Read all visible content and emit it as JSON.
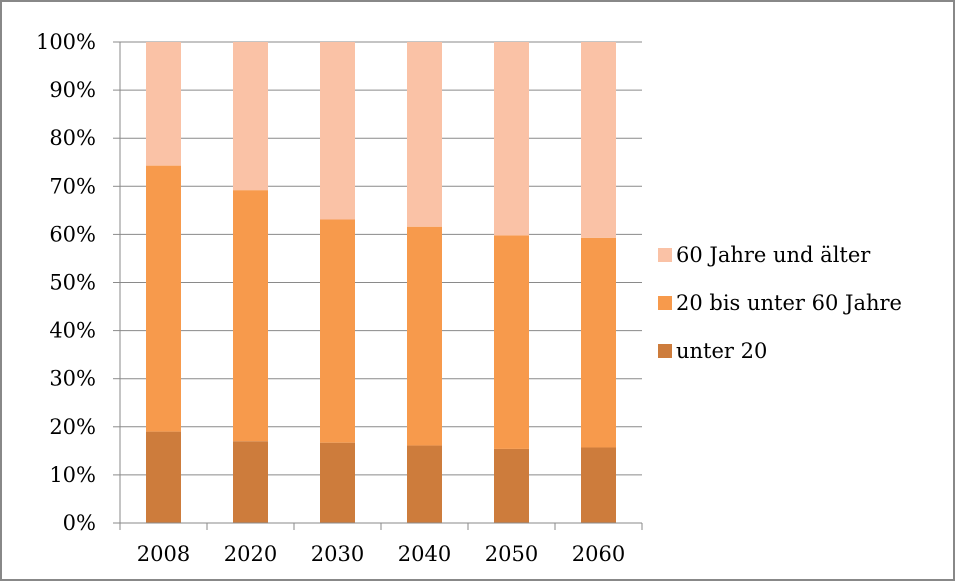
{
  "chart_data": {
    "type": "bar",
    "stacked": true,
    "normalized": true,
    "title": "",
    "xlabel": "",
    "ylabel": "",
    "ylim": [
      0,
      100
    ],
    "ytick_step": 10,
    "y_tick_labels": [
      "0%",
      "10%",
      "20%",
      "30%",
      "40%",
      "50%",
      "60%",
      "70%",
      "80%",
      "90%",
      "100%"
    ],
    "categories": [
      "2008",
      "2020",
      "2030",
      "2040",
      "2050",
      "2060"
    ],
    "grid": "horizontal",
    "legend_position": "right",
    "series": [
      {
        "name": "unter 20",
        "color": "#cd7c3c",
        "values": [
          19,
          17,
          16.7,
          16.1,
          15.4,
          15.7
        ]
      },
      {
        "name": "20 bis unter 60 Jahre",
        "color": "#f79a4c",
        "values": [
          55.3,
          52.2,
          46.4,
          45.5,
          44.4,
          43.6
        ]
      },
      {
        "name": "60 Jahre und älter",
        "color": "#fac2a6",
        "values": [
          25.7,
          30.8,
          36.9,
          38.4,
          40.2,
          40.7
        ]
      }
    ]
  }
}
